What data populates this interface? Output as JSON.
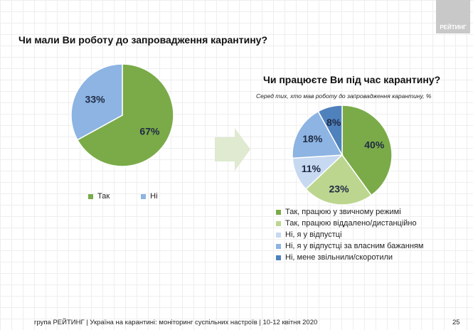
{
  "logo": "РЕЙТИНГ",
  "footer": "група РЕЙТИНГ | Україна на карантині: моніторинг суспільних настроїв  | 10-12 квітня  2020",
  "page_number": "25",
  "chart_data": [
    {
      "type": "pie",
      "title": "Чи мали Ви роботу до запровадження карантину?",
      "labels": [
        "Так",
        "Ні"
      ],
      "values": [
        67,
        33
      ],
      "data_labels": [
        "67%",
        "33%"
      ],
      "colors": [
        "#7aab48",
        "#8db4e2"
      ],
      "legend_placement": "bottom"
    },
    {
      "type": "pie",
      "title": "Чи працюєте Ви під час карантину?",
      "subtitle": "Серед тих, хто мав роботу до запровадження карантину, %",
      "labels": [
        "Так, працюю у звичному режимі",
        "Так, працюю віддалено/дистанційно",
        "Ні, я у відпустці",
        "Ні, я у відпустці за власним бажанням",
        "Ні, мене звільнили/скоротили"
      ],
      "values": [
        40,
        23,
        11,
        18,
        8
      ],
      "data_labels": [
        "40%",
        "23%",
        "11%",
        "18%",
        "8%"
      ],
      "colors": [
        "#7aab48",
        "#bcd68f",
        "#c7d9f1",
        "#8db4e2",
        "#4f81bd"
      ],
      "legend_placement": "bottom"
    }
  ]
}
